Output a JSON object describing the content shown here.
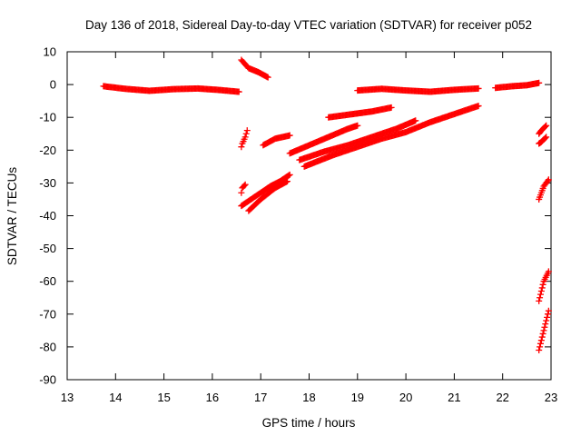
{
  "chart_data": {
    "type": "scatter",
    "title": "Day 136 of 2018, Sidereal Day-to-day VTEC variation (SDTVAR) for receiver p052",
    "xlabel": "GPS time / hours",
    "ylabel": "SDTVAR / TECUs",
    "xlim": [
      13,
      23
    ],
    "ylim": [
      -90,
      10
    ],
    "xticks": [
      "13",
      "14",
      "15",
      "16",
      "17",
      "18",
      "19",
      "20",
      "21",
      "22",
      "23"
    ],
    "yticks": [
      "10",
      "0",
      "-10",
      "-20",
      "-30",
      "-40",
      "-50",
      "-60",
      "-70",
      "-80",
      "-90"
    ],
    "grid": false,
    "legend": "none",
    "marker": "+",
    "color": "#ff0000",
    "series": [
      {
        "x": [
          13.75,
          14.2,
          14.7,
          15.2,
          15.7,
          16.1,
          16.55
        ],
        "y": [
          -0.5,
          -1.3,
          -1.9,
          -1.4,
          -1.2,
          -1.6,
          -2.2
        ]
      },
      {
        "x": [
          16.6,
          16.75,
          16.95,
          17.15
        ],
        "y": [
          7.5,
          5.0,
          3.8,
          2.2
        ]
      },
      {
        "x": [
          16.6,
          16.62,
          16.68,
          16.72
        ],
        "y": [
          -19.0,
          -18.0,
          -16.0,
          -14.0
        ]
      },
      {
        "x": [
          16.6,
          16.62,
          16.68
        ],
        "y": [
          -33.0,
          -31.5,
          -30.5
        ]
      },
      {
        "x": [
          16.6,
          16.8,
          17.0,
          17.2,
          17.4,
          17.6
        ],
        "y": [
          -37.0,
          -35.0,
          -33.0,
          -31.0,
          -29.5,
          -27.5
        ]
      },
      {
        "x": [
          16.75,
          17.0,
          17.3,
          17.55
        ],
        "y": [
          -38.5,
          -35.0,
          -31.5,
          -29.5
        ]
      },
      {
        "x": [
          17.05,
          17.3,
          17.6
        ],
        "y": [
          -18.5,
          -16.5,
          -15.5
        ]
      },
      {
        "x": [
          17.6,
          18.0,
          18.4,
          18.8,
          19.0
        ],
        "y": [
          -21.0,
          -18.5,
          -16.0,
          -13.5,
          -12.5
        ]
      },
      {
        "x": [
          17.8,
          18.3,
          18.8,
          19.3,
          19.8,
          20.2
        ],
        "y": [
          -23.0,
          -20.5,
          -18.5,
          -16.0,
          -13.5,
          -11.0
        ]
      },
      {
        "x": [
          17.9,
          18.5,
          19.0,
          19.5,
          20.0,
          20.5,
          21.0,
          21.5
        ],
        "y": [
          -25.0,
          -21.5,
          -19.0,
          -16.5,
          -14.5,
          -11.5,
          -9.0,
          -6.5
        ]
      },
      {
        "x": [
          18.4,
          18.9,
          19.3,
          19.7
        ],
        "y": [
          -10.0,
          -9.0,
          -8.2,
          -7.0
        ]
      },
      {
        "x": [
          19.0,
          19.5,
          20.0,
          20.5,
          21.0,
          21.5
        ],
        "y": [
          -1.8,
          -1.3,
          -1.8,
          -2.2,
          -1.6,
          -1.2
        ]
      },
      {
        "x": [
          21.85,
          22.2,
          22.5,
          22.75
        ],
        "y": [
          -1.0,
          -0.5,
          -0.2,
          0.5
        ]
      },
      {
        "x": [
          22.75,
          22.8,
          22.9
        ],
        "y": [
          -15.0,
          -14.0,
          -12.5
        ]
      },
      {
        "x": [
          22.75,
          22.8,
          22.9
        ],
        "y": [
          -18.0,
          -17.5,
          -16.0
        ]
      },
      {
        "x": [
          22.75,
          22.8,
          22.85,
          22.95
        ],
        "y": [
          -35.0,
          -33.0,
          -31.0,
          -29.0
        ]
      },
      {
        "x": [
          22.75,
          22.8,
          22.85,
          22.95
        ],
        "y": [
          -66.0,
          -63.0,
          -60.0,
          -57.0
        ]
      },
      {
        "x": [
          22.75,
          22.8,
          22.85,
          22.9,
          22.95
        ],
        "y": [
          -81.0,
          -78.0,
          -75.0,
          -72.0,
          -69.0
        ]
      }
    ]
  }
}
